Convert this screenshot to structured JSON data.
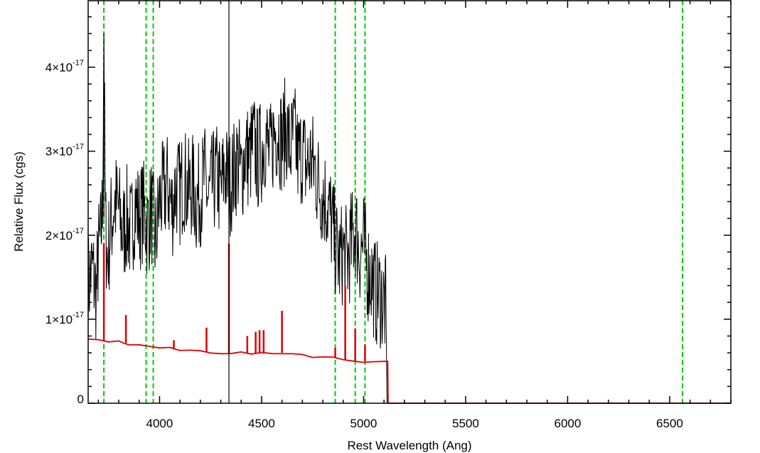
{
  "chart_data": {
    "type": "line",
    "title": "",
    "xlabel": "Rest Wavelength (Ang)",
    "ylabel": "Relative Flux (cgs)",
    "xlim": [
      3650,
      6800
    ],
    "ylim": [
      0,
      4.8e-17
    ],
    "grid": false,
    "legend": "none",
    "x_ticks": [
      {
        "value": 4000,
        "label": "4000"
      },
      {
        "value": 4500,
        "label": "4500"
      },
      {
        "value": 5000,
        "label": "5000"
      },
      {
        "value": 5500,
        "label": "5500"
      },
      {
        "value": 6000,
        "label": "6000"
      },
      {
        "value": 6500,
        "label": "6500"
      }
    ],
    "y_ticks": [
      {
        "value": 0,
        "mantissa": "0",
        "exponent": ""
      },
      {
        "value": 1e-17,
        "mantissa": "1×10",
        "exponent": "-17"
      },
      {
        "value": 2e-17,
        "mantissa": "2×10",
        "exponent": "-17"
      },
      {
        "value": 3e-17,
        "mantissa": "3×10",
        "exponent": "-17"
      },
      {
        "value": 4e-17,
        "mantissa": "4×10",
        "exponent": "-17"
      }
    ],
    "vlines": {
      "color": "#00cc00",
      "style": "dashed",
      "x": [
        3727,
        3934,
        3969,
        4861,
        4959,
        5007,
        6563
      ]
    },
    "series": [
      {
        "color": "#000000",
        "role": "observed spectrum",
        "x": [
          3650,
          3670,
          3690,
          3700,
          3710,
          3720,
          3727,
          3735,
          3745,
          3760,
          3780,
          3800,
          3820,
          3840,
          3860,
          3880,
          3900,
          3920,
          3940,
          3960,
          3980,
          4000,
          4020,
          4040,
          4060,
          4080,
          4100,
          4120,
          4140,
          4160,
          4180,
          4200,
          4220,
          4240,
          4260,
          4280,
          4300,
          4320,
          4340,
          4360,
          4380,
          4400,
          4420,
          4440,
          4460,
          4480,
          4500,
          4520,
          4540,
          4560,
          4580,
          4600,
          4620,
          4640,
          4660,
          4680,
          4700,
          4720,
          4740,
          4760,
          4780,
          4800,
          4820,
          4840,
          4860,
          4880,
          4900,
          4920,
          4940,
          4960,
          4980,
          5000,
          5020,
          5040,
          5060,
          5080,
          5100,
          5110,
          5115,
          5120,
          6800
        ],
        "y": [
          1.4e-17,
          1.6e-17,
          1.3e-17,
          1.8e-17,
          1.9e-17,
          2.3e-17,
          4.4e-17,
          2.1e-17,
          1.7e-17,
          2.1e-17,
          2.4e-17,
          2.3e-17,
          2e-17,
          2.2e-17,
          2e-17,
          2.4e-17,
          2.2e-17,
          2.3e-17,
          2.1e-17,
          2.3e-17,
          1.9e-17,
          2.4e-17,
          2.5e-17,
          2.6e-17,
          2.3e-17,
          2.6e-17,
          2.5e-17,
          2.7e-17,
          2.5e-17,
          2.6e-17,
          2.4e-17,
          2.5e-17,
          2.7e-17,
          2.4e-17,
          2.6e-17,
          2.7e-17,
          2.5e-17,
          2.8e-17,
          2.6e-17,
          2.7e-17,
          2.9e-17,
          2.7e-17,
          3e-17,
          2.9e-17,
          3.1e-17,
          2.9e-17,
          3e-17,
          3.2e-17,
          2.9e-17,
          3.2e-17,
          3.3e-17,
          3.1e-17,
          3.3e-17,
          3e-17,
          3.2e-17,
          2.9e-17,
          3e-17,
          2.8e-17,
          2.9e-17,
          2.8e-17,
          2.6e-17,
          2.5e-17,
          2.4e-17,
          2.2e-17,
          1.9e-17,
          1.7e-17,
          1.8e-17,
          1.7e-17,
          1.9e-17,
          2.1e-17,
          1.8e-17,
          1.9e-17,
          1.6e-17,
          1.5e-17,
          1.3e-17,
          1.3e-17,
          1.2e-17,
          1.1e-17,
          0,
          0,
          0
        ]
      },
      {
        "color": "#dd0000",
        "role": "model fit",
        "x": [
          3650,
          3700,
          3750,
          3800,
          3830,
          3850,
          3900,
          3950,
          4000,
          4050,
          4100,
          4150,
          4200,
          4250,
          4300,
          4350,
          4400,
          4450,
          4500,
          4550,
          4600,
          4650,
          4700,
          4750,
          4800,
          4850,
          4900,
          4950,
          5000,
          5050,
          5100,
          5118,
          5120,
          6800
        ],
        "y": [
          7.6e-18,
          7.5e-18,
          7.4e-18,
          7.3e-18,
          7.2e-18,
          7e-18,
          6.9e-18,
          6.8e-18,
          6.6e-18,
          6.5e-18,
          6.3e-18,
          6.3e-18,
          6.2e-18,
          6.1e-18,
          6e-18,
          6e-18,
          6e-18,
          5.9e-18,
          5.9e-18,
          5.9e-18,
          6e-18,
          5.9e-18,
          5.8e-18,
          5.6e-18,
          5.5e-18,
          5.4e-18,
          5.2e-18,
          5.1e-18,
          5e-18,
          4.9e-18,
          5e-18,
          5.1e-18,
          0,
          0
        ]
      }
    ],
    "emission_spikes": {
      "color": "#dd0000",
      "lines": [
        {
          "x": 3727,
          "peak": 1.9e-17
        },
        {
          "x": 3835,
          "peak": 1.05e-17
        },
        {
          "x": 4070,
          "peak": 7.5e-18
        },
        {
          "x": 4230,
          "peak": 9e-18
        },
        {
          "x": 4340,
          "peak": 1.9e-17
        },
        {
          "x": 4430,
          "peak": 8e-18
        },
        {
          "x": 4471,
          "peak": 8.5e-18
        },
        {
          "x": 4490,
          "peak": 8.7e-18
        },
        {
          "x": 4510,
          "peak": 8.7e-18
        },
        {
          "x": 4600,
          "peak": 1.1e-17
        },
        {
          "x": 4861,
          "peak": 6.6e-18
        },
        {
          "x": 4910,
          "peak": 1.4e-17
        },
        {
          "x": 4959,
          "peak": 8.9e-18
        },
        {
          "x": 5007,
          "peak": 7e-18
        }
      ]
    },
    "black_spikes": [
      {
        "x": 3727,
        "from": 2.2e-17,
        "to": 4.4e-17
      },
      {
        "x": 4340,
        "from": 0,
        "to": 4.8e-17
      }
    ]
  }
}
